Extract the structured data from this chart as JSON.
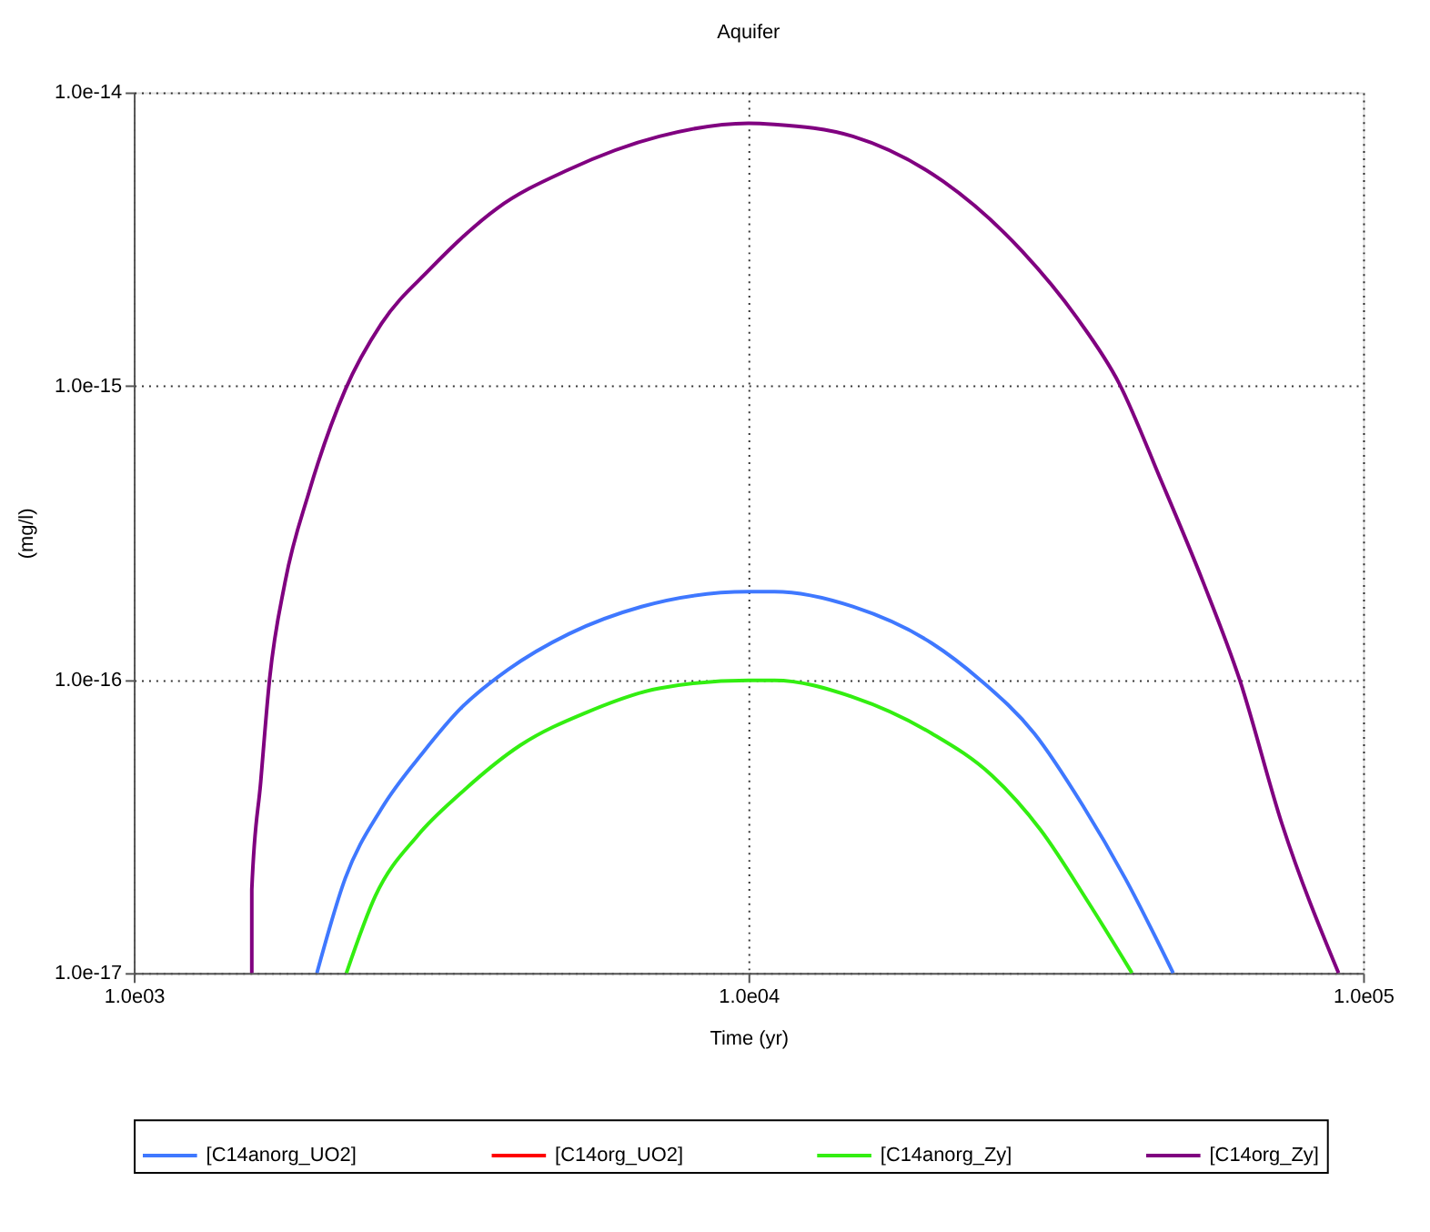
{
  "chart_data": {
    "type": "line",
    "title": "Aquifer",
    "xlabel": "Time (yr)",
    "ylabel": "(mg/l)",
    "log": "xy",
    "grid": true,
    "legend": "bottom",
    "marker": "none",
    "line_style": "solid",
    "xlim": [
      1000,
      100000
    ],
    "xticks": [
      {
        "value": 1000,
        "label": "1.0e03"
      },
      {
        "value": 10000,
        "label": "1.0e04"
      },
      {
        "value": 100000,
        "label": "1.0e05"
      }
    ],
    "ylim": [
      1e-17,
      1e-14
    ],
    "yticks": [
      {
        "value": 1e-17,
        "label": "1.0e-17"
      },
      {
        "value": 1e-16,
        "label": "1.0e-16"
      },
      {
        "value": 1e-15,
        "label": "1.0e-15"
      },
      {
        "value": 1e-14,
        "label": "1.0e-14"
      }
    ],
    "series": [
      {
        "name": "[C14anorg_UO2]",
        "color": "#3f78ff",
        "x": [
          1986,
          2208,
          2529,
          2965,
          3396,
          4064,
          5105,
          6699,
          10000,
          11020,
          14790,
          19860,
          23770,
          29170,
          34990,
          41020,
          49090
        ],
        "values": [
          1e-17,
          2.1e-17,
          3.63e-17,
          5.69e-17,
          7.93e-17,
          1.08e-16,
          1.43e-16,
          1.77e-16,
          1.99e-16,
          1.99e-16,
          1.77e-16,
          1.33e-16,
          1e-16,
          6.55e-17,
          3.72e-17,
          2.1e-17,
          1e-17
        ]
      },
      {
        "name": "[C14org_UO2]",
        "color": "#ff0000"
      },
      {
        "name": "[C14anorg_Zy]",
        "color": "#33ee11",
        "x": [
          2218,
          2472,
          2897,
          3396,
          4256,
          5458,
          7161,
          10000,
          11020,
          14790,
          19860,
          24890,
          29850,
          35730,
          42070
        ],
        "values": [
          1e-17,
          1.83e-17,
          2.94e-17,
          4.08e-17,
          5.97e-17,
          7.73e-17,
          9.33e-17,
          9.93e-17,
          9.93e-17,
          8.71e-17,
          6.55e-17,
          4.71e-17,
          3.08e-17,
          1.74e-17,
          1e-17
        ]
      },
      {
        "name": "[C14org_Zy]",
        "color": "#800080",
        "x": [
          1556,
          1556,
          1609,
          1663,
          1762,
          1928,
          2208,
          2529,
          3034,
          3890,
          5105,
          7161,
          10000,
          11020,
          14790,
          20750,
          27860,
          34200,
          40090,
          46880,
          54950,
          62950,
          73790,
          91200
        ],
        "values": [
          1e-17,
          1.92e-17,
          4.49e-17,
          1e-16,
          2.14e-16,
          4.35e-16,
          9.7e-16,
          1.63e-15,
          2.5e-15,
          4.01e-15,
          5.46e-15,
          7.08e-15,
          7.85e-15,
          7.78e-15,
          7.08e-15,
          4.97e-15,
          2.88e-15,
          1.71e-15,
          1.02e-15,
          4.78e-16,
          2.14e-16,
          1e-16,
          3.22e-17,
          1e-17
        ]
      }
    ]
  }
}
